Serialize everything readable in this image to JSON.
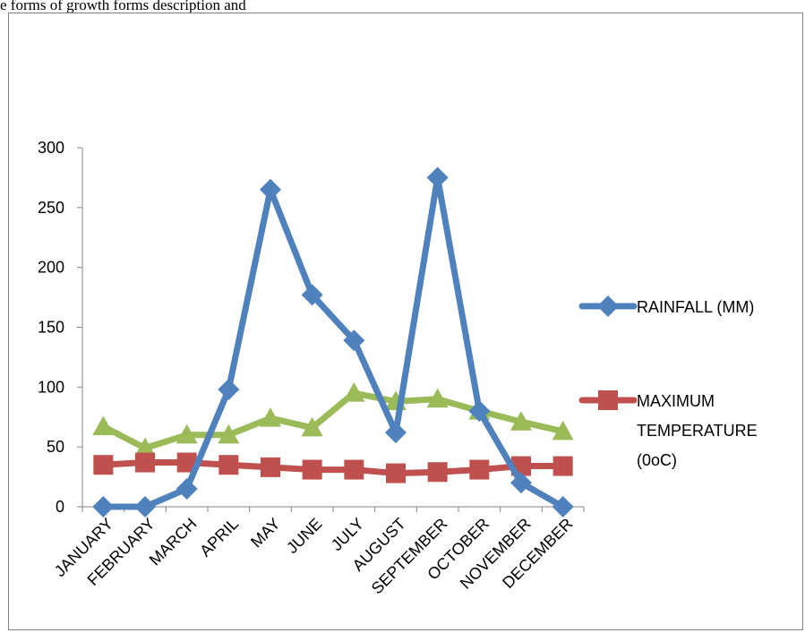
{
  "page": {
    "top_text": "e forms of growth forms description and"
  },
  "chart_data": {
    "type": "line",
    "categories": [
      "JANUARY",
      "FEBRUARY",
      "MARCH",
      "APRIL",
      "MAY",
      "JUNE",
      "JULY",
      "AUGUST",
      "SEPTEMBER",
      "OCTOBER",
      "NOVEMBER",
      "DECEMBER"
    ],
    "ylim": [
      0,
      300
    ],
    "yticks": [
      0,
      50,
      100,
      150,
      200,
      250,
      300
    ],
    "grid": false,
    "legend_placement": "right",
    "series": [
      {
        "name": "RAINFALL (MM)",
        "legend_lines": [
          "RAINFALL (MM)"
        ],
        "color": "#4F81BD",
        "marker": "diamond",
        "values": [
          0,
          0,
          15,
          98,
          265,
          177,
          139,
          62,
          275,
          80,
          20,
          0
        ]
      },
      {
        "name": "MAXIMUM TEMPERATURE (0oC)",
        "legend_lines": [
          "MAXIMUM",
          "TEMPERATURE",
          "(0oC)"
        ],
        "color": "#C0504D",
        "marker": "square",
        "values": [
          35,
          37,
          37,
          35,
          33,
          31,
          31,
          28,
          29,
          31,
          34,
          34
        ]
      },
      {
        "name": "",
        "legend_lines": [],
        "color": "#9BBB59",
        "marker": "triangle",
        "values": [
          67,
          49,
          60,
          60,
          74,
          66,
          95,
          88,
          90,
          80,
          71,
          63
        ]
      }
    ]
  }
}
